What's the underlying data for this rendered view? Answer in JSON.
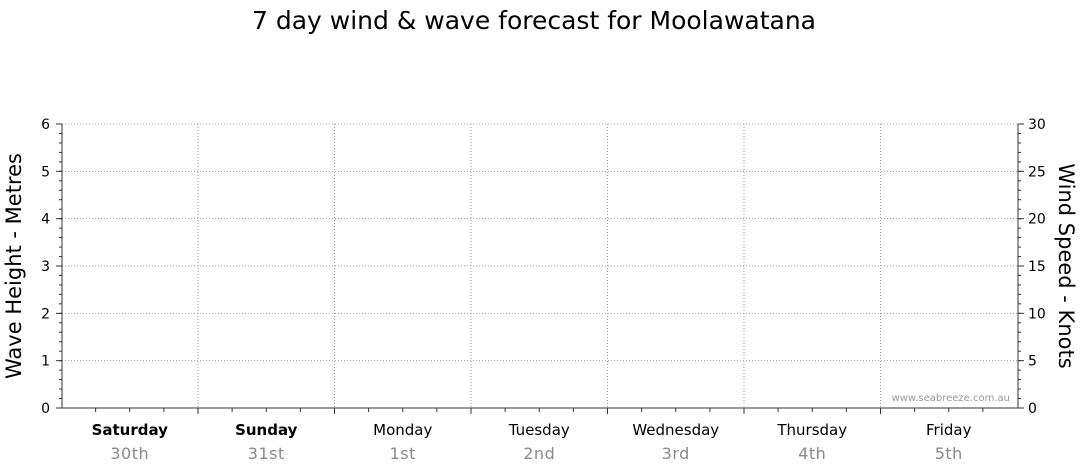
{
  "chart_data": {
    "type": "line",
    "title": "7 day wind & wave forecast for Moolawatana",
    "ylabel_left": "Wave Height - Metres",
    "ylabel_right": "Wind Speed - Knots",
    "y_left": {
      "range": [
        0,
        6
      ],
      "ticks": [
        "0",
        "1",
        "2",
        "3",
        "4",
        "5",
        "6"
      ]
    },
    "y_right": {
      "range": [
        0,
        30
      ],
      "ticks": [
        "0",
        "5",
        "10",
        "15",
        "20",
        "25",
        "30"
      ]
    },
    "grid": true,
    "categories": [
      {
        "day": "Saturday",
        "date": "30th",
        "bold": true
      },
      {
        "day": "Sunday",
        "date": "31st",
        "bold": true
      },
      {
        "day": "Monday",
        "date": "1st",
        "bold": false
      },
      {
        "day": "Tuesday",
        "date": "2nd",
        "bold": false
      },
      {
        "day": "Wednesday",
        "date": "3rd",
        "bold": false
      },
      {
        "day": "Thursday",
        "date": "4th",
        "bold": false
      },
      {
        "day": "Friday",
        "date": "5th",
        "bold": false
      }
    ],
    "series": []
  },
  "watermark": "www.seabreeze.com.au",
  "colors": {
    "grid": "#9a9a9a",
    "date_text": "#8a8a8a",
    "axis": "#333333"
  }
}
